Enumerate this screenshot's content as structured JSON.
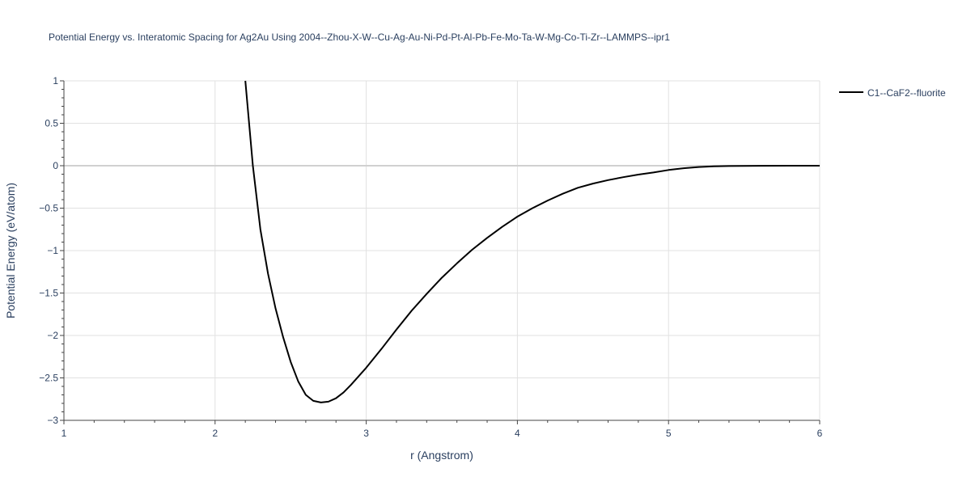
{
  "chart_data": {
    "type": "line",
    "title": "Potential Energy vs. Interatomic Spacing for Ag2Au Using 2004--Zhou-X-W--Cu-Ag-Au-Ni-Pd-Pt-Al-Pb-Fe-Mo-Ta-W-Mg-Co-Ti-Zr--LAMMPS--ipr1",
    "xlabel": "r (Angstrom)",
    "ylabel": "Potential Energy (eV/atom)",
    "xlim": [
      1,
      6
    ],
    "ylim": [
      -3,
      1
    ],
    "x_ticks": [
      1,
      2,
      3,
      4,
      5,
      6
    ],
    "x_tick_labels": [
      "1",
      "2",
      "3",
      "4",
      "5",
      "6"
    ],
    "y_ticks": [
      1,
      0.5,
      0,
      -0.5,
      -1,
      -1.5,
      -2,
      -2.5,
      -3
    ],
    "y_tick_labels": [
      "1",
      "0.5",
      "0",
      "−0.5",
      "−1",
      "−1.5",
      "−2",
      "−2.5",
      "−3"
    ],
    "grid": true,
    "legend_position": "top-right",
    "series": [
      {
        "name": "C1--CaF2--fluorite",
        "color": "#000000",
        "x": [
          2.2,
          2.25,
          2.3,
          2.35,
          2.4,
          2.45,
          2.5,
          2.55,
          2.6,
          2.65,
          2.7,
          2.75,
          2.8,
          2.85,
          2.9,
          3.0,
          3.1,
          3.2,
          3.3,
          3.4,
          3.5,
          3.6,
          3.7,
          3.8,
          3.9,
          4.0,
          4.1,
          4.2,
          4.3,
          4.4,
          4.5,
          4.6,
          4.7,
          4.8,
          4.9,
          5.0,
          5.1,
          5.2,
          5.3,
          5.4,
          5.6,
          5.8,
          6.0
        ],
        "y": [
          1.0,
          0.0,
          -0.75,
          -1.27,
          -1.68,
          -2.02,
          -2.31,
          -2.54,
          -2.7,
          -2.77,
          -2.79,
          -2.78,
          -2.74,
          -2.67,
          -2.58,
          -2.38,
          -2.16,
          -1.93,
          -1.71,
          -1.51,
          -1.32,
          -1.15,
          -0.99,
          -0.85,
          -0.72,
          -0.6,
          -0.5,
          -0.41,
          -0.33,
          -0.26,
          -0.21,
          -0.17,
          -0.135,
          -0.105,
          -0.08,
          -0.05,
          -0.03,
          -0.015,
          -0.008,
          -0.004,
          -0.001,
          0.0,
          0.0
        ]
      }
    ]
  }
}
